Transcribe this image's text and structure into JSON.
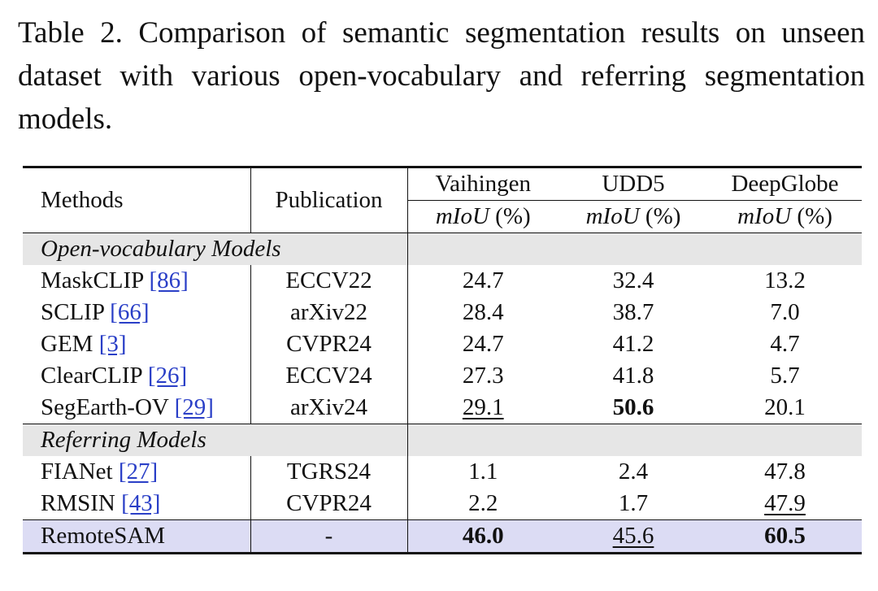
{
  "caption": "Table 2. Comparison of semantic segmentation results on unseen dataset with various open-vocabulary and referring segmentation models.",
  "header": {
    "methods": "Methods",
    "publication": "Publication",
    "datasets": [
      "Vaihingen",
      "UDD5",
      "DeepGlobe"
    ],
    "metric_italic": "mIoU",
    "metric_unit": "(%)"
  },
  "groups": [
    {
      "title": "Open-vocabulary Models",
      "rows": [
        {
          "method": "MaskCLIP",
          "ref": "[86]",
          "pub": "ECCV22",
          "vaihingen": "24.7",
          "udd5": "32.4",
          "deepglobe": "13.2"
        },
        {
          "method": "SCLIP",
          "ref": "[66]",
          "pub": "arXiv22",
          "vaihingen": "28.4",
          "udd5": "38.7",
          "deepglobe": "7.0"
        },
        {
          "method": "GEM",
          "ref": "[3]",
          "pub": "CVPR24",
          "vaihingen": "24.7",
          "udd5": "41.2",
          "deepglobe": "4.7"
        },
        {
          "method": "ClearCLIP",
          "ref": "[26]",
          "pub": "ECCV24",
          "vaihingen": "27.3",
          "udd5": "41.8",
          "deepglobe": "5.7"
        },
        {
          "method": "SegEarth-OV",
          "ref": "[29]",
          "pub": "arXiv24",
          "vaihingen": "29.1",
          "udd5": "50.6",
          "deepglobe": "20.1"
        }
      ]
    },
    {
      "title": "Referring Models",
      "rows": [
        {
          "method": "FIANet",
          "ref": "[27]",
          "pub": "TGRS24",
          "vaihingen": "1.1",
          "udd5": "2.4",
          "deepglobe": "47.8"
        },
        {
          "method": "RMSIN",
          "ref": "[43]",
          "pub": "CVPR24",
          "vaihingen": "2.2",
          "udd5": "1.7",
          "deepglobe": "47.9"
        }
      ]
    }
  ],
  "ours": {
    "method": "RemoteSAM",
    "pub": "-",
    "vaihingen": "46.0",
    "udd5": "45.6",
    "deepglobe": "60.5"
  }
}
